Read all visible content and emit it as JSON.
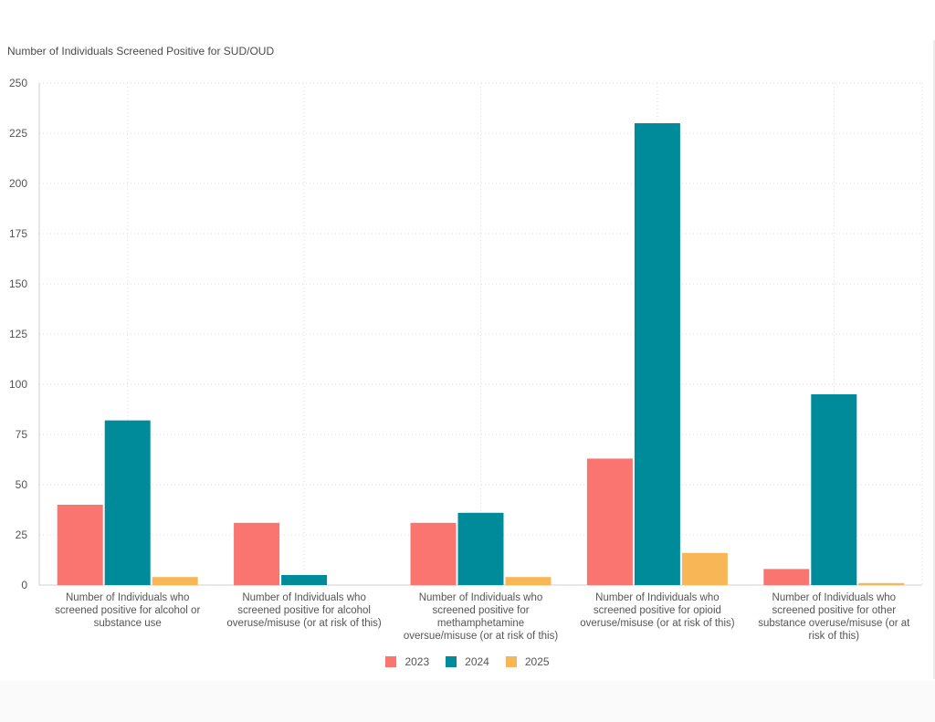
{
  "chart_data": {
    "type": "bar",
    "title": "Number of Individuals Screened Positive for SUD/OUD",
    "categories": [
      [
        "Number of Individuals who",
        "screened positive for alcohol or",
        "substance use"
      ],
      [
        "Number of Individuals who",
        "screened positive for alcohol",
        "overuse/misuse (or at risk of this)"
      ],
      [
        "Number of Individuals who",
        "screened positive for",
        "methamphetamine",
        "oversue/misuse (or at risk of this)"
      ],
      [
        "Number of Individuals who",
        "screened positive for opioid",
        "overuse/misuse (or at risk of this)"
      ],
      [
        "Number of Individuals who",
        "screened positive for other",
        "substance overuse/misuse (or at",
        "risk of this)"
      ]
    ],
    "series": [
      {
        "name": "2023",
        "color": "#fa7470",
        "values": [
          40,
          31,
          31,
          63,
          8
        ]
      },
      {
        "name": "2024",
        "color": "#008b9b",
        "values": [
          82,
          5,
          36,
          230,
          95
        ]
      },
      {
        "name": "2025",
        "color": "#f8b657",
        "values": [
          4,
          0,
          4,
          16,
          1
        ]
      }
    ],
    "ylim": [
      0,
      250
    ],
    "yticks": [
      "0",
      "25",
      "50",
      "75",
      "100",
      "125",
      "150",
      "175",
      "200",
      "225",
      "250"
    ],
    "grid": true,
    "legend_position": "bottom-center"
  }
}
